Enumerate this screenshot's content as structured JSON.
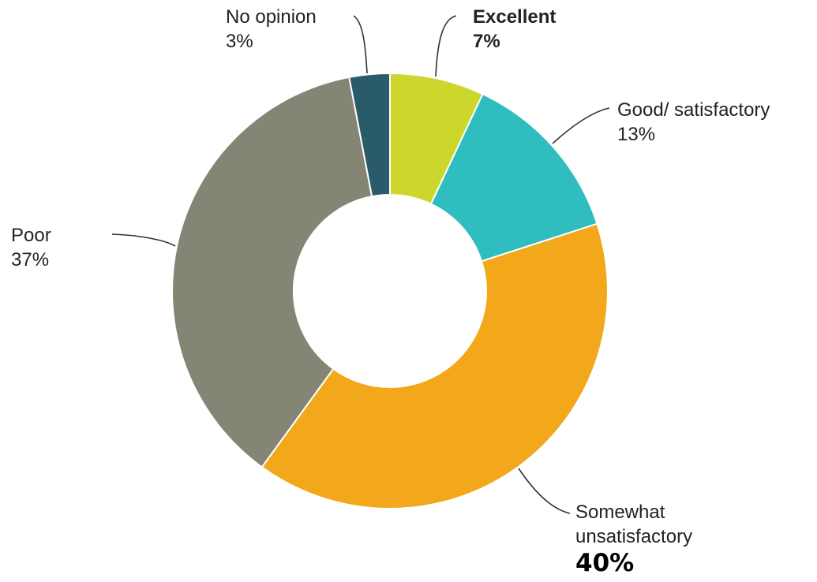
{
  "chart_data": {
    "type": "pie",
    "donut": true,
    "slices": [
      {
        "label_lines": [
          "Excellent"
        ],
        "value_text": "7%",
        "value": 7,
        "color": "#cdd62a"
      },
      {
        "label_lines": [
          "Good/ satisfactory"
        ],
        "value_text": "13%",
        "value": 13,
        "color": "#2fbdbf"
      },
      {
        "label_lines": [
          "Somewhat",
          "unsatisfactory"
        ],
        "value_text": "40%",
        "value": 40,
        "color": "#f3a81c"
      },
      {
        "label_lines": [
          "Poor"
        ],
        "value_text": "37%",
        "value": 37,
        "color": "#858576"
      },
      {
        "label_lines": [
          "No opinion"
        ],
        "value_text": "3%",
        "value": 3,
        "color": "#2a5b6b"
      }
    ]
  }
}
